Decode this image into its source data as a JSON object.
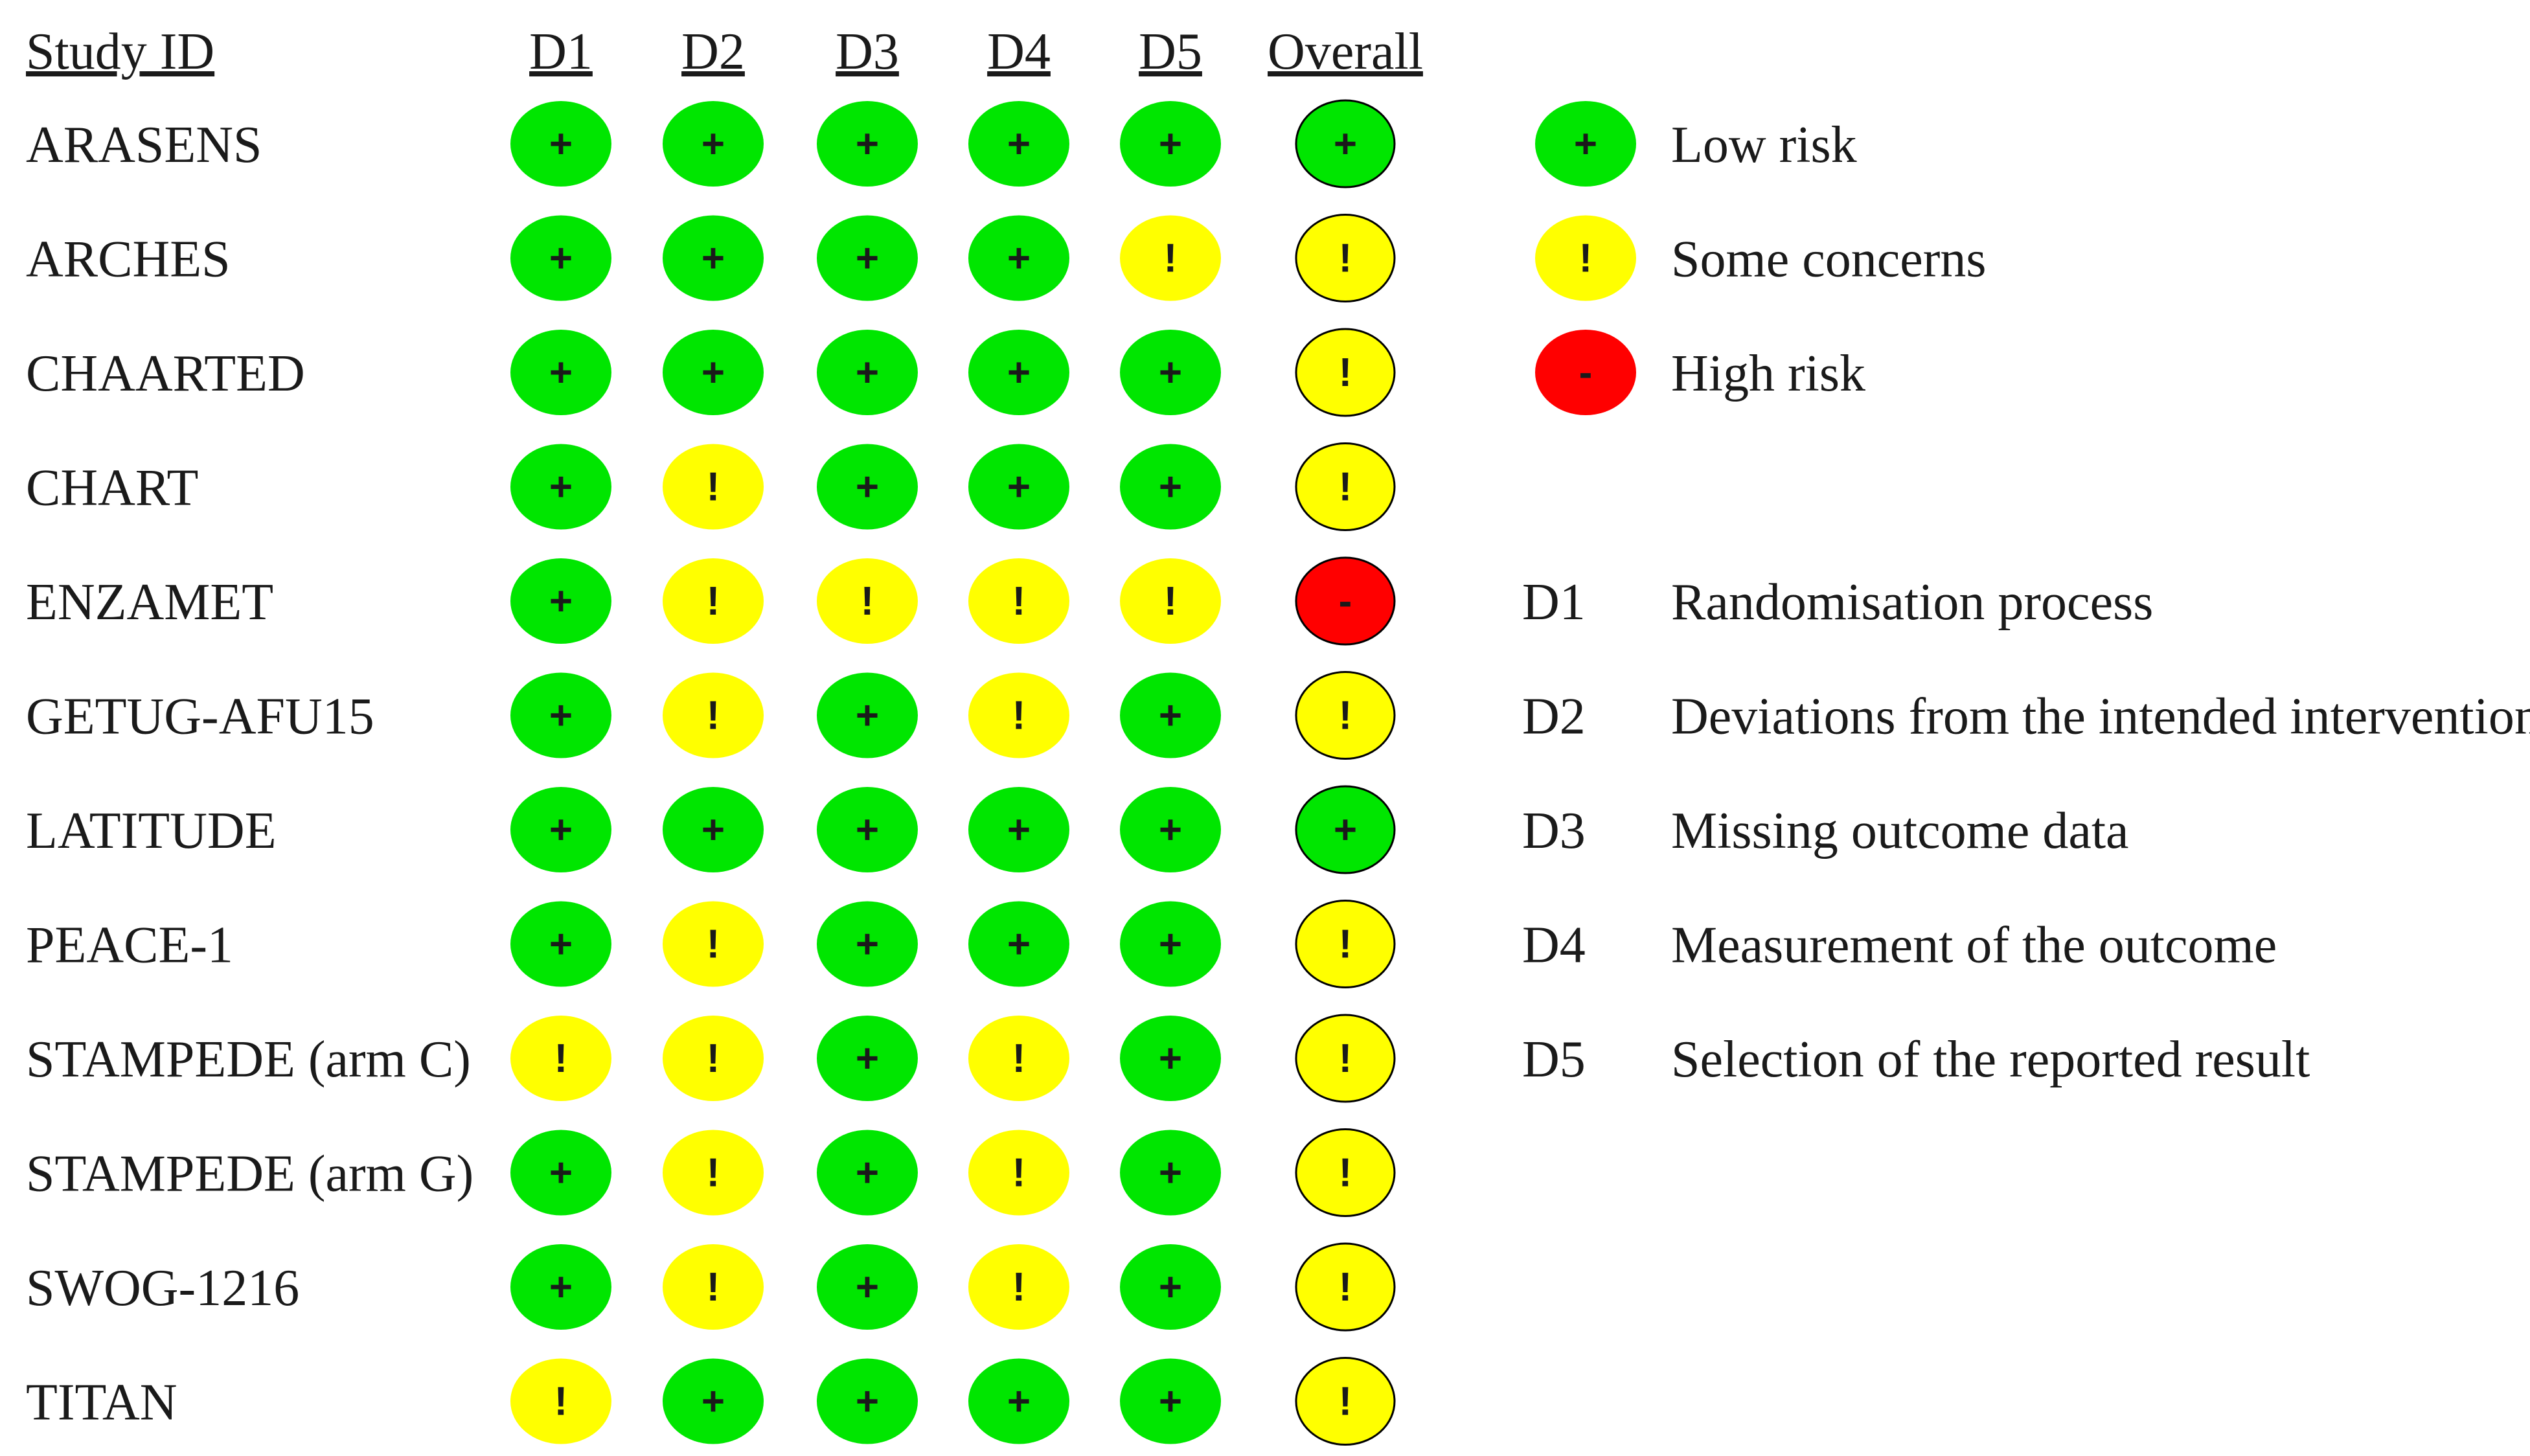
{
  "chart_data": {
    "type": "table",
    "header": {
      "study_id": "Study ID",
      "domains": [
        "D1",
        "D2",
        "D3",
        "D4",
        "D5"
      ],
      "overall": "Overall"
    },
    "rows": [
      {
        "study": "ARASENS",
        "judgements": [
          "low",
          "low",
          "low",
          "low",
          "low"
        ],
        "overall": "low"
      },
      {
        "study": "ARCHES",
        "judgements": [
          "low",
          "low",
          "low",
          "low",
          "some"
        ],
        "overall": "some"
      },
      {
        "study": "CHAARTED",
        "judgements": [
          "low",
          "low",
          "low",
          "low",
          "low"
        ],
        "overall": "some"
      },
      {
        "study": "CHART",
        "judgements": [
          "low",
          "some",
          "low",
          "low",
          "low"
        ],
        "overall": "some"
      },
      {
        "study": "ENZAMET",
        "judgements": [
          "low",
          "some",
          "some",
          "some",
          "some"
        ],
        "overall": "high"
      },
      {
        "study": "GETUG-AFU15",
        "judgements": [
          "low",
          "some",
          "low",
          "some",
          "low"
        ],
        "overall": "some"
      },
      {
        "study": "LATITUDE",
        "judgements": [
          "low",
          "low",
          "low",
          "low",
          "low"
        ],
        "overall": "low"
      },
      {
        "study": "PEACE-1",
        "judgements": [
          "low",
          "some",
          "low",
          "low",
          "low"
        ],
        "overall": "some"
      },
      {
        "study": "STAMPEDE (arm C)",
        "judgements": [
          "some",
          "some",
          "low",
          "some",
          "low"
        ],
        "overall": "some"
      },
      {
        "study": "STAMPEDE (arm G)",
        "judgements": [
          "low",
          "some",
          "low",
          "some",
          "low"
        ],
        "overall": "some"
      },
      {
        "study": "SWOG-1216",
        "judgements": [
          "low",
          "some",
          "low",
          "some",
          "low"
        ],
        "overall": "some"
      },
      {
        "study": "TITAN",
        "judgements": [
          "some",
          "low",
          "low",
          "low",
          "low"
        ],
        "overall": "some"
      }
    ],
    "judgement_key": [
      {
        "key": "low",
        "symbol": "+",
        "label": "Low risk",
        "color": "#00e600"
      },
      {
        "key": "some",
        "symbol": "!",
        "label": "Some concerns",
        "color": "#ffff00"
      },
      {
        "key": "high",
        "symbol": "-",
        "label": "High risk",
        "color": "#ff0000"
      }
    ],
    "domain_key": [
      {
        "code": "D1",
        "label": "Randomisation process"
      },
      {
        "code": "D2",
        "label": "Deviations from the intended interventions"
      },
      {
        "code": "D3",
        "label": "Missing outcome data"
      },
      {
        "code": "D4",
        "label": "Measurement of the outcome"
      },
      {
        "code": "D5",
        "label": "Selection of the reported result"
      }
    ]
  }
}
